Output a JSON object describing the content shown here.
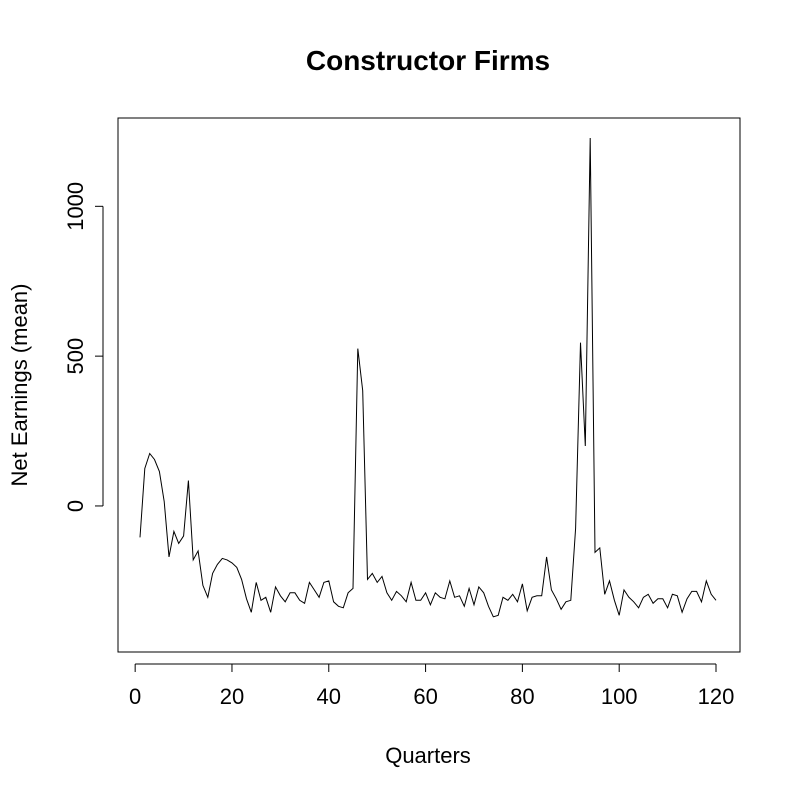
{
  "chart_data": {
    "type": "line",
    "title": "Constructor Firms",
    "xlabel": "Quarters",
    "ylabel": "Net Earnings (mean)",
    "xlim": [
      1,
      120
    ],
    "ylim": [
      -424,
      1228
    ],
    "x_ticks": [
      0,
      20,
      40,
      60,
      80,
      100,
      120
    ],
    "y_ticks": [
      0,
      500,
      1000
    ],
    "grid": false,
    "legend": "none",
    "line_color": "#000000",
    "series": [
      {
        "x": [
          1,
          2,
          3,
          4,
          5,
          6,
          7,
          8,
          9,
          10,
          11,
          12,
          13,
          14,
          15,
          16,
          17,
          18,
          19,
          20,
          21,
          22,
          23,
          24,
          25,
          26,
          27,
          28,
          29,
          30,
          31,
          32,
          33,
          34,
          35,
          36,
          37,
          38,
          39,
          40,
          41,
          42,
          43,
          44,
          45,
          46,
          47,
          48,
          49,
          50,
          51,
          52,
          53,
          54,
          55,
          56,
          57,
          58,
          59,
          60,
          61,
          62,
          63,
          64,
          65,
          66,
          67,
          68,
          69,
          70,
          71,
          72,
          73,
          74,
          75,
          76,
          77,
          78,
          79,
          80,
          81,
          82,
          83,
          84,
          85,
          86,
          87,
          88,
          89,
          90,
          91,
          92,
          93,
          94,
          95,
          96,
          97,
          98,
          99,
          100,
          101,
          102,
          103,
          104,
          105,
          106,
          107,
          108,
          109,
          110,
          111,
          112,
          113,
          114,
          115,
          116,
          117,
          118,
          119,
          120
        ],
        "values": [
          -105,
          125,
          175,
          155,
          115,
          15,
          -170,
          -85,
          -125,
          -100,
          85,
          -180,
          -150,
          -265,
          -305,
          -225,
          -195,
          -175,
          -180,
          -190,
          -205,
          -245,
          -310,
          -355,
          -255,
          -315,
          -305,
          -355,
          -270,
          -300,
          -320,
          -290,
          -290,
          -315,
          -325,
          -255,
          -280,
          -305,
          -255,
          -250,
          -320,
          -335,
          -340,
          -290,
          -275,
          525,
          385,
          -245,
          -225,
          -255,
          -235,
          -290,
          -315,
          -285,
          -300,
          -320,
          -255,
          -315,
          -315,
          -290,
          -330,
          -290,
          -305,
          -310,
          -250,
          -305,
          -300,
          -335,
          -275,
          -330,
          -270,
          -290,
          -335,
          -370,
          -365,
          -305,
          -315,
          -295,
          -320,
          -260,
          -350,
          -305,
          -300,
          -300,
          -170,
          -280,
          -310,
          -345,
          -320,
          -315,
          -75,
          545,
          200,
          1228,
          -155,
          -140,
          -295,
          -250,
          -315,
          -365,
          -280,
          -305,
          -320,
          -340,
          -305,
          -295,
          -325,
          -310,
          -310,
          -340,
          -295,
          -300,
          -355,
          -310,
          -285,
          -285,
          -320,
          -250,
          -295,
          -315
        ]
      }
    ]
  }
}
